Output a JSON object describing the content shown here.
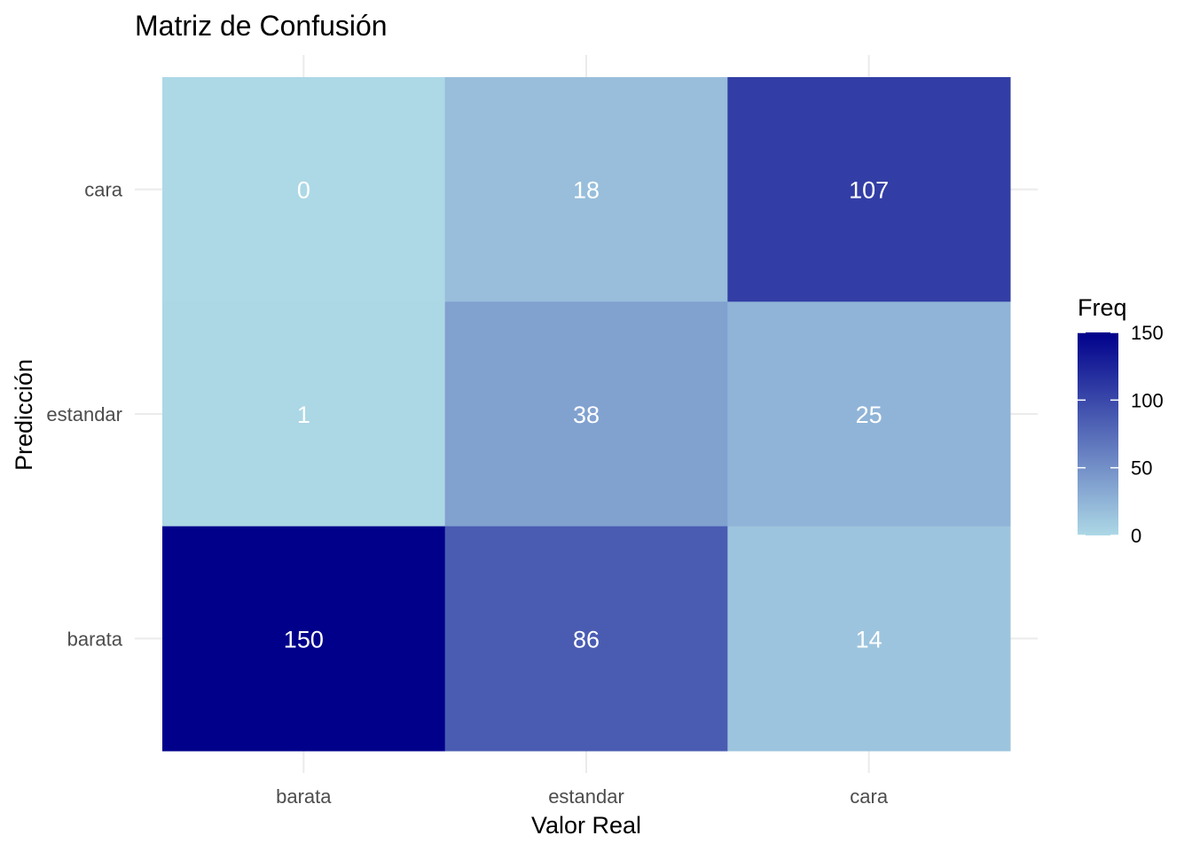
{
  "chart_data": {
    "type": "heatmap",
    "title": "Matriz de Confusión",
    "xlabel": "Valor Real",
    "ylabel": "Predicción",
    "x_categories": [
      "barata",
      "estandar",
      "cara"
    ],
    "y_categories": [
      "barata",
      "estandar",
      "cara"
    ],
    "cells": [
      {
        "x": "barata",
        "y": "cara",
        "value": 0
      },
      {
        "x": "estandar",
        "y": "cara",
        "value": 18
      },
      {
        "x": "cara",
        "y": "cara",
        "value": 107
      },
      {
        "x": "barata",
        "y": "estandar",
        "value": 1
      },
      {
        "x": "estandar",
        "y": "estandar",
        "value": 38
      },
      {
        "x": "cara",
        "y": "estandar",
        "value": 25
      },
      {
        "x": "barata",
        "y": "barata",
        "value": 150
      },
      {
        "x": "estandar",
        "y": "barata",
        "value": 86
      },
      {
        "x": "cara",
        "y": "barata",
        "value": 14
      }
    ],
    "color_scale": {
      "low": "#add8e6",
      "high": "#00008b",
      "limits": [
        0,
        150
      ]
    },
    "legend": {
      "title": "Freq",
      "ticks": [
        0,
        50,
        100,
        150
      ],
      "tick_labels": [
        "0",
        "50",
        "100",
        "150"
      ],
      "placement": "right"
    },
    "grid": true,
    "cell_label_color": "#ffffff"
  }
}
